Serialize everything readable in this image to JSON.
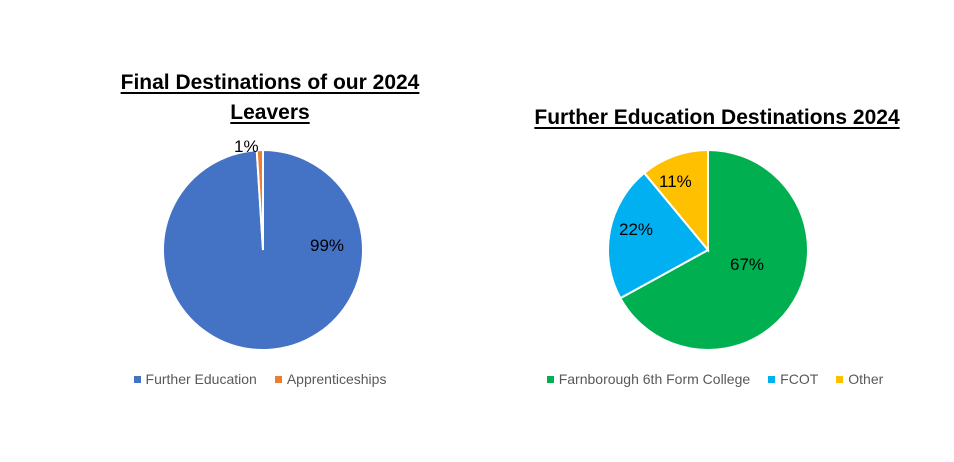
{
  "chart_data": [
    {
      "type": "pie",
      "title": "Final Destinations of our 2024 Leavers",
      "categories": [
        "Further Education",
        "Apprenticeships"
      ],
      "values": [
        99,
        1
      ],
      "value_labels": [
        "99%",
        "1%"
      ],
      "colors": [
        "#4472C4",
        "#ED7D31"
      ],
      "legend": "bottom"
    },
    {
      "type": "pie",
      "title": "Further Education Destinations 2024",
      "categories": [
        "Farnborough 6th Form College",
        "FCOT",
        "Other"
      ],
      "values": [
        67,
        22,
        11
      ],
      "value_labels": [
        "67%",
        "22%",
        "11%"
      ],
      "colors": [
        "#00B050",
        "#00B0F0",
        "#FFC000"
      ],
      "legend": "bottom"
    }
  ]
}
